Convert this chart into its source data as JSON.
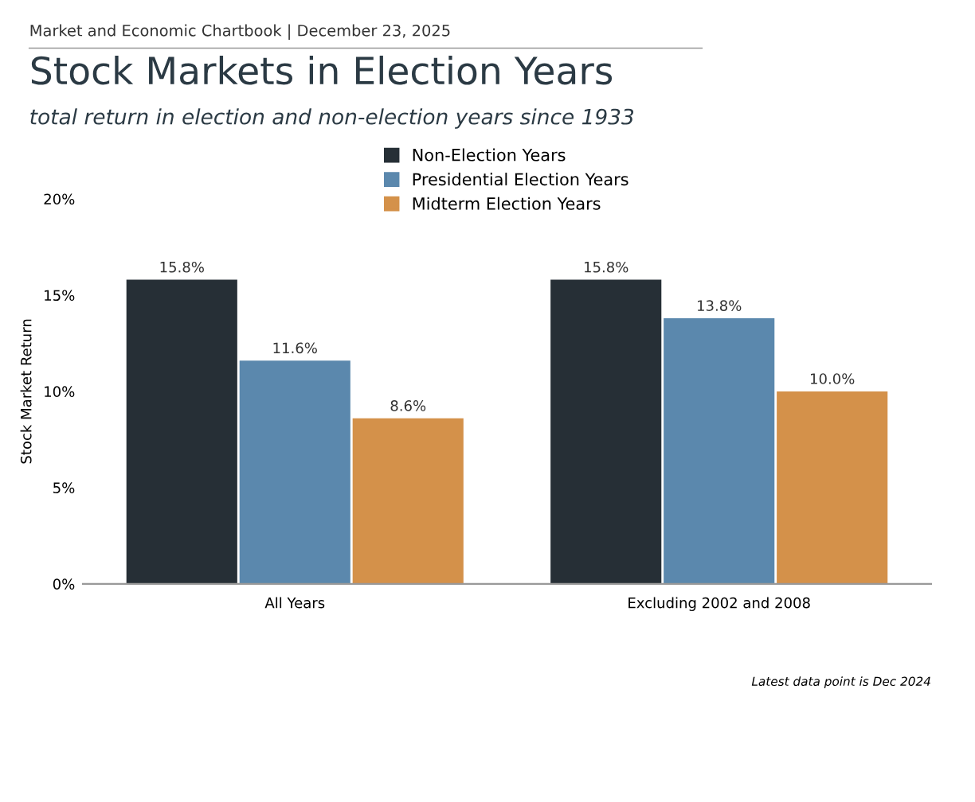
{
  "chart_data": {
    "type": "bar",
    "title": "Stock Markets in Election Years",
    "subtitle": "total return in election and non-election years since 1933",
    "ylabel": "Stock Market Return",
    "categories": [
      "All Years",
      "Excluding 2002 and 2008"
    ],
    "series": [
      {
        "name": "Non-Election Years",
        "color": "#262f36",
        "values": [
          15.8,
          15.8
        ],
        "value_labels": [
          "15.8%",
          "15.8%"
        ]
      },
      {
        "name": "Presidential Election Years",
        "color": "#5b88ad",
        "values": [
          11.6,
          13.8
        ],
        "value_labels": [
          "11.6%",
          "13.8%"
        ]
      },
      {
        "name": "Midterm Election Years",
        "color": "#d4914a",
        "values": [
          8.6,
          10.0
        ],
        "value_labels": [
          "8.6%",
          "10.0%"
        ]
      }
    ],
    "ylim": [
      0,
      20
    ],
    "yticks": [
      {
        "value": 0,
        "label": "0%"
      },
      {
        "value": 5,
        "label": "5%"
      },
      {
        "value": 10,
        "label": "10%"
      },
      {
        "value": 15,
        "label": "15%"
      },
      {
        "value": 20,
        "label": "20%"
      }
    ],
    "grid": false,
    "legend": "top",
    "annotations": [
      "Market and Economic Chartbook | December 23, 2025",
      "Latest data point is Dec 2024"
    ]
  }
}
